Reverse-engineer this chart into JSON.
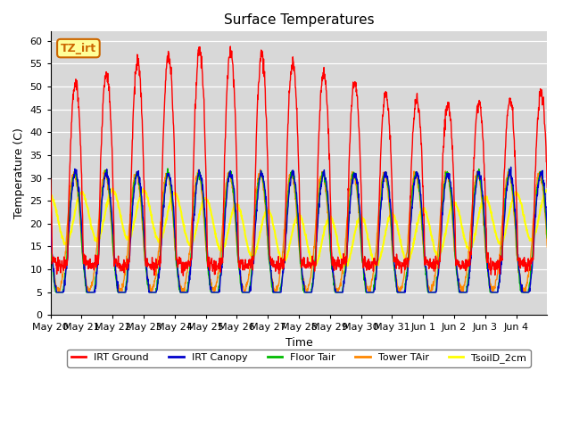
{
  "title": "Surface Temperatures",
  "ylabel": "Temperature (C)",
  "xlabel": "Time",
  "annotation": "TZ_irt",
  "annotation_color": "#cc6600",
  "annotation_bg": "#ffff99",
  "ylim": [
    0,
    62
  ],
  "yticks": [
    0,
    5,
    10,
    15,
    20,
    25,
    30,
    35,
    40,
    45,
    50,
    55,
    60
  ],
  "bg_color": "#d8d8d8",
  "legend": [
    "IRT Ground",
    "IRT Canopy",
    "Floor Tair",
    "Tower TAir",
    "TsoilD_2cm"
  ],
  "line_colors": [
    "#ff0000",
    "#0000cc",
    "#00bb00",
    "#ff8800",
    "#ffff00"
  ],
  "days": [
    "May 20",
    "May 21",
    "May 22",
    "May 23",
    "May 24",
    "May 25",
    "May 26",
    "May 27",
    "May 28",
    "May 29",
    "May 30",
    "May 31",
    "Jun 1",
    "Jun 2",
    "Jun 3",
    "Jun 4"
  ],
  "n_points": 1600
}
